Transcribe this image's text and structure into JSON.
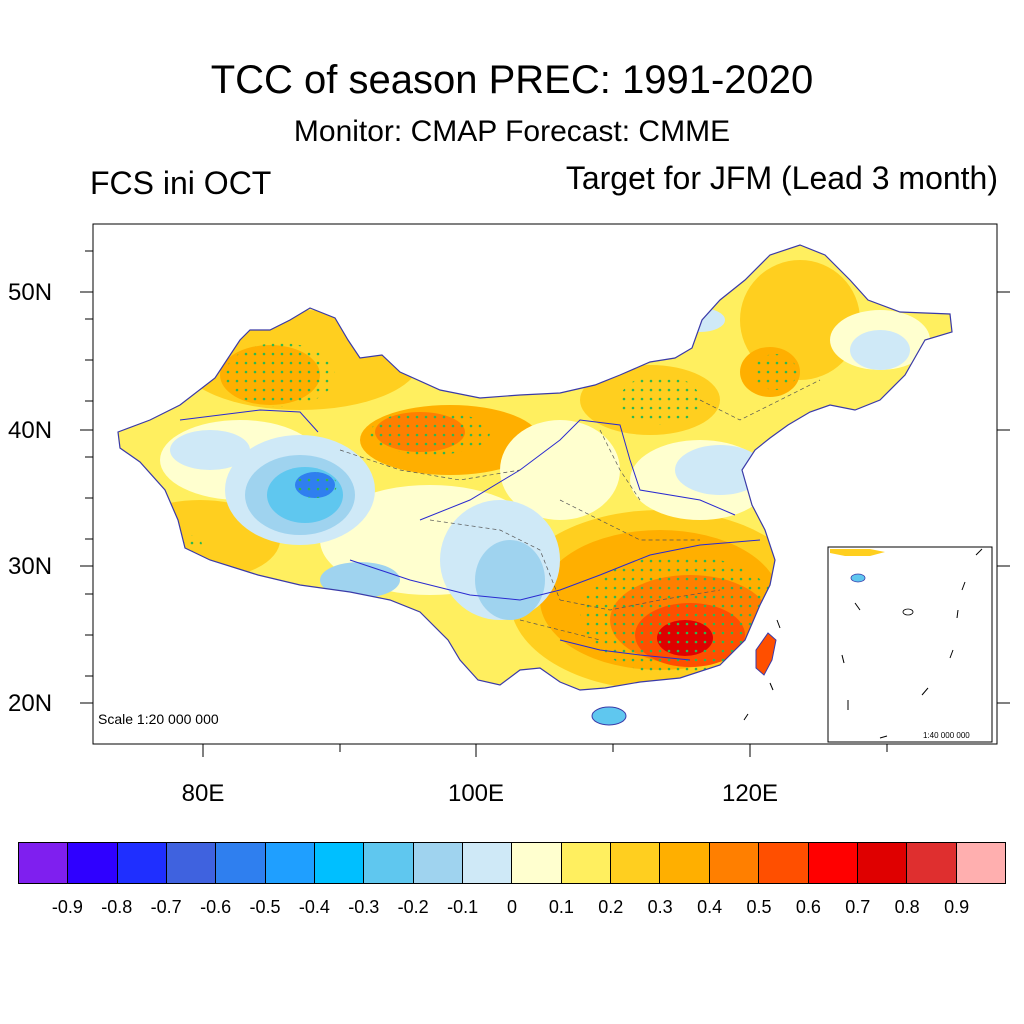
{
  "title": "TCC of season PREC: 1991-2020",
  "subtitle": "Monitor: CMAP   Forecast: CMME",
  "left_string": "FCS ini OCT",
  "right_string": "Target for JFM (Lead 3 month)",
  "map": {
    "lat_labels": [
      "50N",
      "40N",
      "30N",
      "20N"
    ],
    "lon_labels": [
      "80E",
      "100E",
      "120E"
    ],
    "scale_label": "Scale 1:20 000 000",
    "inset_scale_label": "1:40 000 000"
  },
  "colorbar": {
    "colors": [
      "#7f1fef",
      "#2f00ff",
      "#1f2fff",
      "#3f62df",
      "#2f7fef",
      "#1f9fff",
      "#00bfff",
      "#5fc7ef",
      "#9fd3ef",
      "#cfe9f7",
      "#ffffcf",
      "#ffef5f",
      "#ffcf1f",
      "#ffaf00",
      "#ff7f00",
      "#ff4f00",
      "#ff0000",
      "#df0000",
      "#df2f2f",
      "#ffafaf"
    ],
    "tick_labels": [
      "-0.9",
      "-0.8",
      "-0.7",
      "-0.6",
      "-0.5",
      "-0.4",
      "-0.3",
      "-0.2",
      "-0.1",
      "0",
      "0.1",
      "0.2",
      "0.3",
      "0.4",
      "0.5",
      "0.6",
      "0.7",
      "0.8",
      "0.9"
    ]
  }
}
